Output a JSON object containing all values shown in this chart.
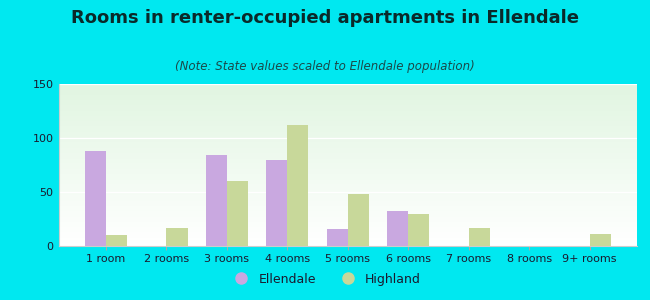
{
  "title": "Rooms in renter-occupied apartments in Ellendale",
  "subtitle": "(Note: State values scaled to Ellendale population)",
  "categories": [
    "1 room",
    "2 rooms",
    "3 rooms",
    "4 rooms",
    "5 rooms",
    "6 rooms",
    "7 rooms",
    "8 rooms",
    "9+ rooms"
  ],
  "ellendale": [
    88,
    0,
    84,
    80,
    16,
    32,
    0,
    0,
    0
  ],
  "highland": [
    10,
    17,
    60,
    112,
    48,
    30,
    17,
    0,
    11
  ],
  "ellendale_color": "#c9a8e0",
  "highland_color": "#c8d89a",
  "background_outer": "#00e8f0",
  "ylim": [
    0,
    150
  ],
  "yticks": [
    0,
    50,
    100,
    150
  ],
  "bar_width": 0.35,
  "legend_ellendale": "Ellendale",
  "legend_highland": "Highland",
  "title_fontsize": 13,
  "subtitle_fontsize": 8.5,
  "tick_fontsize": 8
}
